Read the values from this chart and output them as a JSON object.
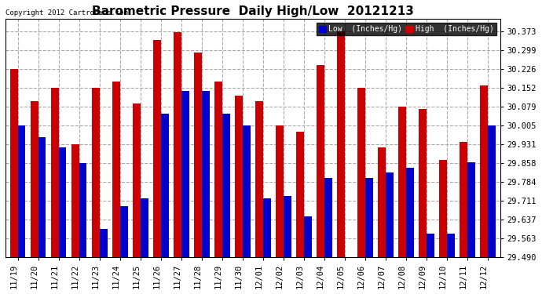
{
  "title": "Barometric Pressure  Daily High/Low  20121213",
  "copyright": "Copyright 2012 Cartronics.com",
  "ylabel_right_values": [
    30.373,
    30.299,
    30.226,
    30.152,
    30.079,
    30.005,
    29.931,
    29.858,
    29.784,
    29.711,
    29.637,
    29.563,
    29.49
  ],
  "ylim": [
    29.49,
    30.42
  ],
  "dates": [
    "11/19",
    "11/20",
    "11/21",
    "11/22",
    "11/23",
    "11/24",
    "11/25",
    "11/26",
    "11/27",
    "11/28",
    "11/29",
    "11/30",
    "12/01",
    "12/02",
    "12/03",
    "12/04",
    "12/05",
    "12/06",
    "12/07",
    "12/08",
    "12/09",
    "12/10",
    "12/11",
    "12/12"
  ],
  "low_values": [
    30.005,
    29.96,
    29.92,
    29.858,
    29.6,
    29.69,
    29.72,
    30.05,
    30.14,
    30.14,
    30.05,
    30.005,
    29.72,
    29.73,
    29.65,
    29.8,
    29.49,
    29.8,
    29.82,
    29.84,
    29.58,
    29.58,
    29.86,
    30.005
  ],
  "high_values": [
    30.226,
    30.1,
    30.152,
    29.931,
    30.152,
    30.175,
    30.09,
    30.34,
    30.37,
    30.29,
    30.175,
    30.12,
    30.1,
    30.005,
    29.98,
    30.24,
    30.373,
    30.152,
    29.92,
    30.079,
    30.07,
    29.87,
    29.94,
    30.16
  ],
  "low_color": "#0000cc",
  "high_color": "#cc0000",
  "bg_color": "#ffffff",
  "grid_color": "#aaaaaa",
  "title_fontsize": 11,
  "tick_fontsize": 7.5,
  "bar_width": 0.38,
  "ybaseline": 29.49
}
